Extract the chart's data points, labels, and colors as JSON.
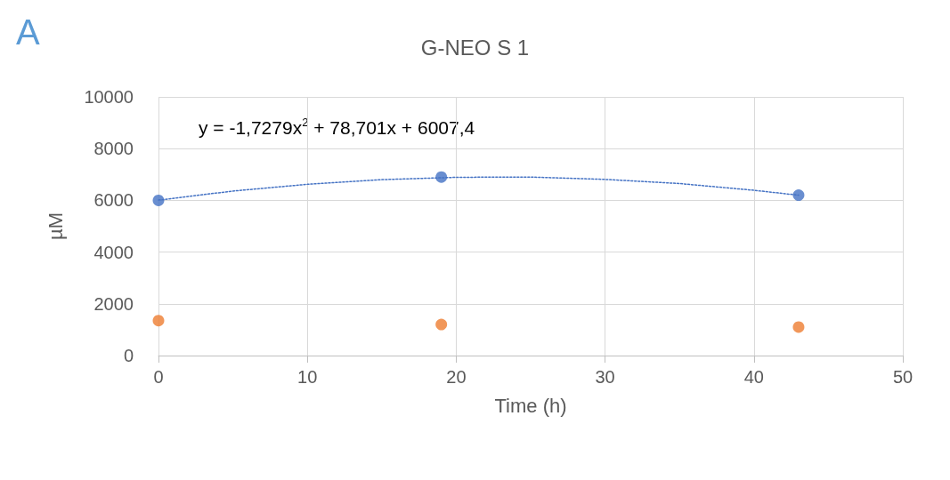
{
  "chart_data": {
    "type": "scatter",
    "title": "G-NEO S 1",
    "xlabel": "Time (h)",
    "ylabel": "µM",
    "x": [
      0,
      19,
      43
    ],
    "series": [
      {
        "color": "#4472c4",
        "values": [
          6000,
          6900,
          6200
        ]
      },
      {
        "color": "#ed7d31",
        "values": [
          1350,
          1200,
          1100
        ]
      },
      {
        "type": "line",
        "color": "#4472c4",
        "line_style": "dotted",
        "marker": "none",
        "x": [
          0,
          5,
          10,
          15,
          20,
          23,
          25,
          30,
          35,
          40,
          43
        ],
        "values": [
          6010,
          6360,
          6620,
          6800,
          6890,
          6900,
          6900,
          6810,
          6650,
          6390,
          6200
        ]
      }
    ],
    "annotations": [
      "A",
      "y = -1,7279x$^{2}$ + 78,701x + 6007,4"
    ],
    "xlim": [
      0,
      50
    ],
    "xticks": [
      0,
      10,
      20,
      30,
      40,
      50
    ],
    "ylim": [
      0,
      10000
    ],
    "yticks": [
      0,
      2000,
      4000,
      6000,
      8000,
      10000
    ],
    "grid": true,
    "marker": "circle"
  }
}
